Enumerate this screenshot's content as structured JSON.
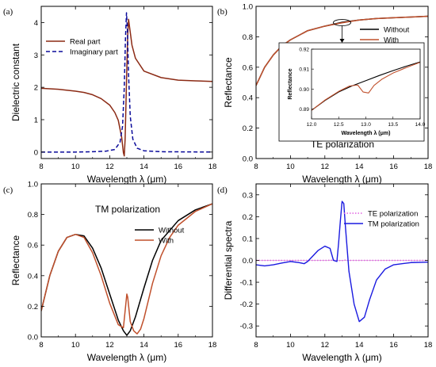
{
  "chart_data": [
    {
      "panel": "(a)",
      "type": "line",
      "xlabel": "Wavelength λ (μm)",
      "ylabel": "Dielectric constant",
      "xlim": [
        8,
        18
      ],
      "ylim": [
        -0.2,
        4.5
      ],
      "xticks": [
        8,
        10,
        12,
        14,
        16,
        18
      ],
      "yticks": [
        0,
        1,
        2,
        3,
        4
      ],
      "legend": "top-left",
      "series": [
        {
          "name": "Real part",
          "color": "#8b2a14",
          "style": "solid",
          "x": [
            8,
            9,
            10,
            10.5,
            11,
            11.5,
            12,
            12.3,
            12.5,
            12.7,
            12.8,
            12.85,
            12.9,
            12.95,
            13.0,
            13.05,
            13.1,
            13.2,
            13.3,
            13.5,
            14,
            15,
            16,
            17,
            18
          ],
          "y": [
            1.97,
            1.94,
            1.88,
            1.84,
            1.77,
            1.65,
            1.45,
            1.22,
            0.98,
            0.45,
            -0.02,
            -0.12,
            0.4,
            1.5,
            2.6,
            3.6,
            4.1,
            3.7,
            3.3,
            2.9,
            2.5,
            2.3,
            2.22,
            2.2,
            2.18
          ]
        },
        {
          "name": "Imaginary part",
          "color": "#0a0a9a",
          "style": "dashed",
          "x": [
            8,
            10,
            11,
            11.8,
            12.3,
            12.6,
            12.75,
            12.85,
            12.92,
            12.98,
            13.03,
            13.1,
            13.2,
            13.35,
            13.6,
            14,
            15,
            18
          ],
          "y": [
            0,
            0,
            0.01,
            0.03,
            0.08,
            0.3,
            0.8,
            2.0,
            3.5,
            4.3,
            3.8,
            2.4,
            1.1,
            0.4,
            0.12,
            0.04,
            0.01,
            0
          ]
        }
      ]
    },
    {
      "panel": "(b)",
      "type": "line",
      "xlabel": "Wavelength λ (μm)",
      "ylabel": "Reflectance",
      "annotation": "TE polarization",
      "xlim": [
        8,
        18
      ],
      "ylim": [
        0.0,
        1.0
      ],
      "xticks": [
        8,
        10,
        12,
        14,
        16,
        18
      ],
      "yticks": [
        0.0,
        0.2,
        0.4,
        0.6,
        0.8,
        1.0
      ],
      "legend": "top-right",
      "series": [
        {
          "name": "Without",
          "color": "#000000",
          "x": [
            8,
            8.5,
            9,
            9.5,
            10,
            10.5,
            11,
            12,
            13,
            14,
            15,
            16,
            17,
            18
          ],
          "y": [
            0.48,
            0.6,
            0.68,
            0.74,
            0.78,
            0.81,
            0.84,
            0.87,
            0.895,
            0.91,
            0.92,
            0.925,
            0.93,
            0.935
          ]
        },
        {
          "name": "With",
          "color": "#c0502c",
          "x": [
            8,
            8.5,
            9,
            9.5,
            10,
            10.5,
            11,
            12,
            13,
            14,
            15,
            16,
            17,
            18
          ],
          "y": [
            0.48,
            0.6,
            0.68,
            0.74,
            0.78,
            0.81,
            0.84,
            0.87,
            0.892,
            0.91,
            0.92,
            0.925,
            0.93,
            0.935
          ]
        }
      ],
      "inset": {
        "xlabel": "Wavelength λ (μm)",
        "ylabel": "Reflectance",
        "xlim": [
          12.0,
          14.0
        ],
        "ylim": [
          0.885,
          0.92
        ],
        "xticks": [
          "12.0",
          "12.5",
          "13.0",
          "13.5",
          "14.0"
        ],
        "yticks": [
          "0.89",
          "0.90",
          "0.91",
          "0.92"
        ],
        "series": [
          {
            "name": "Without",
            "color": "#000000",
            "x": [
              12.0,
              12.25,
              12.5,
              12.75,
              13.0,
              13.25,
              13.5,
              13.75,
              14.0
            ],
            "y": [
              0.8893,
              0.8943,
              0.8985,
              0.9016,
              0.9042,
              0.9068,
              0.9092,
              0.9115,
              0.9136
            ]
          },
          {
            "name": "With",
            "color": "#c0502c",
            "x": [
              12.0,
              12.25,
              12.5,
              12.7,
              12.85,
              12.95,
              13.05,
              13.15,
              13.3,
              13.5,
              13.75,
              14.0
            ],
            "y": [
              0.8893,
              0.8945,
              0.8988,
              0.9015,
              0.902,
              0.8985,
              0.898,
              0.9018,
              0.905,
              0.908,
              0.9108,
              0.9134
            ]
          }
        ]
      }
    },
    {
      "panel": "(c)",
      "type": "line",
      "xlabel": "Wavelength λ (μm)",
      "ylabel": "Reflectance",
      "annotation": "TM polarization",
      "xlim": [
        8,
        18
      ],
      "ylim": [
        0.0,
        1.0
      ],
      "xticks": [
        8,
        10,
        12,
        14,
        16,
        18
      ],
      "yticks": [
        0.0,
        0.2,
        0.4,
        0.6,
        0.8,
        1.0
      ],
      "legend": "center-right",
      "series": [
        {
          "name": "Without",
          "color": "#000000",
          "x": [
            8,
            8.5,
            9,
            9.5,
            10,
            10.5,
            11,
            11.5,
            12,
            12.5,
            12.8,
            13.0,
            13.2,
            13.5,
            14,
            14.5,
            15,
            16,
            17,
            18
          ],
          "y": [
            0.17,
            0.4,
            0.56,
            0.65,
            0.67,
            0.66,
            0.58,
            0.45,
            0.28,
            0.11,
            0.04,
            0.01,
            0.04,
            0.13,
            0.32,
            0.5,
            0.63,
            0.76,
            0.83,
            0.87
          ]
        },
        {
          "name": "With",
          "color": "#c0502c",
          "x": [
            8,
            8.5,
            9,
            9.5,
            10,
            10.5,
            11,
            11.5,
            12,
            12.5,
            12.8,
            12.9,
            13.0,
            13.05,
            13.2,
            13.4,
            13.6,
            13.8,
            14,
            14.5,
            15,
            15.5,
            16,
            17,
            18
          ],
          "y": [
            0.17,
            0.4,
            0.56,
            0.65,
            0.67,
            0.65,
            0.55,
            0.4,
            0.22,
            0.08,
            0.06,
            0.17,
            0.28,
            0.26,
            0.1,
            0.04,
            0.02,
            0.05,
            0.12,
            0.35,
            0.53,
            0.65,
            0.73,
            0.82,
            0.87
          ]
        }
      ]
    },
    {
      "panel": "(d)",
      "type": "line",
      "xlabel": "Wavelength λ (μm)",
      "ylabel": "Differential spectra",
      "xlim": [
        8,
        18
      ],
      "ylim": [
        -0.35,
        0.35
      ],
      "xticks": [
        8,
        10,
        12,
        14,
        16,
        18
      ],
      "yticks": [
        -0.3,
        -0.2,
        -0.1,
        0.0,
        0.1,
        0.2,
        0.3
      ],
      "legend": "top-right",
      "series": [
        {
          "name": "TE polarization",
          "color": "#e060e0",
          "style": "dotted",
          "x": [
            8,
            12,
            12.8,
            12.95,
            13.1,
            13.3,
            18
          ],
          "y": [
            0,
            0,
            0.001,
            -0.003,
            0.002,
            0,
            0
          ]
        },
        {
          "name": "TM polarization",
          "color": "#1a1ae0",
          "style": "solid",
          "x": [
            8,
            8.5,
            9,
            9.5,
            10,
            10.5,
            10.8,
            11,
            11.3,
            11.6,
            12.0,
            12.3,
            12.5,
            12.7,
            12.8,
            12.9,
            13.0,
            13.1,
            13.2,
            13.4,
            13.7,
            14.0,
            14.3,
            14.6,
            15.0,
            15.5,
            16.0,
            17.0,
            18.0
          ],
          "y": [
            -0.02,
            -0.025,
            -0.02,
            -0.012,
            -0.005,
            -0.01,
            -0.015,
            -0.005,
            0.02,
            0.045,
            0.065,
            0.055,
            0.0,
            -0.005,
            0.08,
            0.18,
            0.27,
            0.26,
            0.15,
            -0.05,
            -0.2,
            -0.28,
            -0.26,
            -0.18,
            -0.09,
            -0.04,
            -0.02,
            -0.01,
            -0.008
          ]
        }
      ]
    }
  ]
}
